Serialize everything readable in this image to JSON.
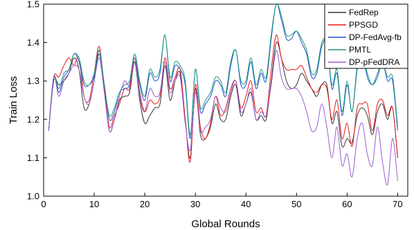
{
  "chart_data": {
    "type": "line",
    "title": "",
    "xlabel": "Global Rounds",
    "ylabel": "Train Loss",
    "xlim": [
      0,
      72
    ],
    "ylim": [
      1.0,
      1.5
    ],
    "x_ticks": [
      0,
      10,
      20,
      30,
      40,
      50,
      60,
      70
    ],
    "y_ticks": [
      1.0,
      1.1,
      1.2,
      1.3,
      1.4,
      1.5
    ],
    "x_tick_labels": [
      "0",
      "10",
      "20",
      "30",
      "40",
      "50",
      "60",
      "70"
    ],
    "y_tick_labels": [
      "1.0",
      "1.1",
      "1.2",
      "1.3",
      "1.4",
      "1.5"
    ],
    "grid": false,
    "legend_position": "top-right",
    "x": [
      1,
      2,
      3,
      4,
      5,
      6,
      7,
      8,
      9,
      10,
      11,
      12,
      13,
      14,
      15,
      16,
      17,
      18,
      19,
      20,
      21,
      22,
      23,
      24,
      25,
      26,
      27,
      28,
      29,
      30,
      31,
      32,
      33,
      34,
      35,
      36,
      37,
      38,
      39,
      40,
      41,
      42,
      43,
      44,
      45,
      46,
      47,
      48,
      49,
      50,
      51,
      52,
      53,
      54,
      55,
      56,
      57,
      58,
      59,
      60,
      61,
      62,
      63,
      64,
      65,
      66,
      67,
      68,
      69,
      70
    ],
    "series": [
      {
        "name": "FedRep",
        "color": "#333333",
        "values": [
          1.17,
          1.3,
          1.29,
          1.3,
          1.32,
          1.36,
          1.33,
          1.23,
          1.24,
          1.3,
          1.38,
          1.28,
          1.17,
          1.2,
          1.25,
          1.26,
          1.27,
          1.35,
          1.25,
          1.19,
          1.21,
          1.23,
          1.24,
          1.34,
          1.25,
          1.3,
          1.32,
          1.2,
          1.1,
          1.28,
          1.16,
          1.15,
          1.18,
          1.24,
          1.2,
          1.2,
          1.26,
          1.29,
          1.21,
          1.24,
          1.27,
          1.2,
          1.21,
          1.2,
          1.3,
          1.4,
          1.36,
          1.3,
          1.28,
          1.29,
          1.32,
          1.3,
          1.28,
          1.26,
          1.29,
          1.29,
          1.19,
          1.22,
          1.13,
          1.15,
          1.14,
          1.21,
          1.23,
          1.21,
          1.16,
          1.22,
          1.24,
          1.2,
          1.23,
          1.1
        ]
      },
      {
        "name": "PPSGD",
        "color": "#e41a1c",
        "values": [
          1.17,
          1.31,
          1.31,
          1.34,
          1.36,
          1.34,
          1.36,
          1.26,
          1.25,
          1.32,
          1.39,
          1.28,
          1.18,
          1.21,
          1.24,
          1.28,
          1.28,
          1.36,
          1.27,
          1.22,
          1.25,
          1.24,
          1.26,
          1.36,
          1.28,
          1.31,
          1.33,
          1.2,
          1.09,
          1.29,
          1.18,
          1.15,
          1.19,
          1.26,
          1.21,
          1.23,
          1.28,
          1.3,
          1.23,
          1.26,
          1.3,
          1.22,
          1.23,
          1.21,
          1.33,
          1.42,
          1.36,
          1.33,
          1.33,
          1.33,
          1.34,
          1.31,
          1.28,
          1.27,
          1.29,
          1.28,
          1.2,
          1.25,
          1.15,
          1.19,
          1.13,
          1.23,
          1.24,
          1.24,
          1.17,
          1.24,
          1.25,
          1.21,
          1.23,
          1.1
        ]
      },
      {
        "name": "DP-FedAvg-fb",
        "color": "#1f4fd1",
        "values": [
          1.17,
          1.31,
          1.27,
          1.31,
          1.33,
          1.37,
          1.35,
          1.29,
          1.29,
          1.31,
          1.37,
          1.29,
          1.2,
          1.22,
          1.27,
          1.28,
          1.29,
          1.37,
          1.29,
          1.25,
          1.32,
          1.3,
          1.32,
          1.42,
          1.3,
          1.34,
          1.33,
          1.29,
          1.15,
          1.33,
          1.22,
          1.24,
          1.26,
          1.3,
          1.29,
          1.26,
          1.34,
          1.38,
          1.29,
          1.29,
          1.35,
          1.28,
          1.32,
          1.3,
          1.41,
          1.5,
          1.46,
          1.41,
          1.41,
          1.43,
          1.4,
          1.37,
          1.31,
          1.32,
          1.39,
          1.4,
          1.28,
          1.32,
          1.21,
          1.29,
          1.22,
          1.33,
          1.37,
          1.31,
          1.29,
          1.31,
          1.35,
          1.3,
          1.3,
          1.17
        ]
      },
      {
        "name": "PMTL",
        "color": "#1a9a7a",
        "values": [
          1.17,
          1.31,
          1.28,
          1.32,
          1.33,
          1.37,
          1.36,
          1.3,
          1.29,
          1.32,
          1.38,
          1.29,
          1.21,
          1.23,
          1.27,
          1.29,
          1.3,
          1.37,
          1.3,
          1.26,
          1.33,
          1.31,
          1.33,
          1.42,
          1.31,
          1.35,
          1.34,
          1.3,
          1.16,
          1.33,
          1.23,
          1.25,
          1.27,
          1.31,
          1.3,
          1.27,
          1.35,
          1.38,
          1.3,
          1.3,
          1.36,
          1.29,
          1.33,
          1.31,
          1.42,
          1.5,
          1.47,
          1.42,
          1.42,
          1.43,
          1.41,
          1.38,
          1.32,
          1.33,
          1.4,
          1.4,
          1.29,
          1.33,
          1.22,
          1.3,
          1.22,
          1.34,
          1.37,
          1.32,
          1.29,
          1.32,
          1.35,
          1.31,
          1.31,
          1.18
        ]
      },
      {
        "name": "DP-pFedDRA",
        "color": "#9b59d0",
        "values": [
          1.17,
          1.31,
          1.26,
          1.3,
          1.32,
          1.34,
          1.33,
          1.26,
          1.24,
          1.3,
          1.36,
          1.27,
          1.17,
          1.2,
          1.26,
          1.3,
          1.29,
          1.36,
          1.26,
          1.22,
          1.28,
          1.26,
          1.27,
          1.35,
          1.27,
          1.3,
          1.31,
          1.19,
          1.12,
          1.27,
          1.17,
          1.18,
          1.2,
          1.26,
          1.23,
          1.22,
          1.27,
          1.3,
          1.22,
          1.24,
          1.28,
          1.2,
          1.22,
          1.21,
          1.29,
          1.38,
          1.31,
          1.28,
          1.28,
          1.28,
          1.26,
          1.22,
          1.17,
          1.18,
          1.24,
          1.18,
          1.1,
          1.18,
          1.08,
          1.11,
          1.05,
          1.15,
          1.19,
          1.11,
          1.08,
          1.18,
          1.09,
          1.03,
          1.15,
          1.04
        ]
      }
    ]
  }
}
